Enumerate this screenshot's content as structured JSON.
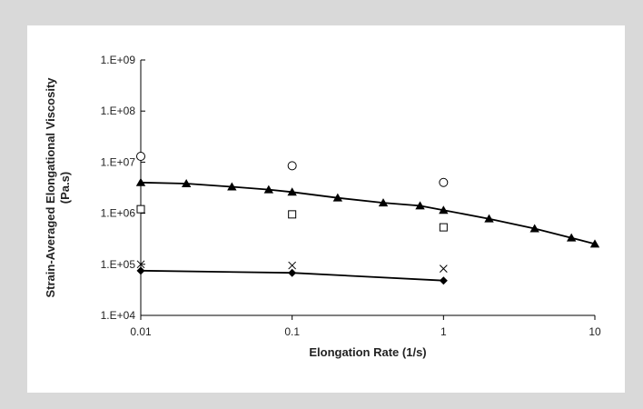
{
  "chart_data": {
    "type": "scatter",
    "xscale": "log",
    "yscale": "log",
    "xlim": [
      0.01,
      10
    ],
    "ylim": [
      10000,
      1000000000
    ],
    "xlabel": "Elongation Rate (1/s)",
    "ylabel_line1": "Strain-Averaged Elongational Viscosity",
    "ylabel_line2": "(Pa.s)",
    "x_ticks": [
      0.01,
      0.1,
      1,
      10
    ],
    "x_tick_labels": [
      "0.01",
      "0.1",
      "1",
      "10"
    ],
    "y_ticks": [
      10000,
      100000,
      1000000,
      10000000,
      100000000,
      1000000000
    ],
    "y_tick_labels": [
      "1.E+04",
      "1.E+05",
      "1.E+06",
      "1.E+07",
      "1.E+08",
      "1.E+09"
    ],
    "grid": false,
    "legend": "none",
    "series": [
      {
        "marker": "triangle",
        "line": true,
        "x": [
          0.01,
          0.02,
          0.04,
          0.07,
          0.1,
          0.2,
          0.4,
          0.7,
          1,
          2,
          4,
          7,
          10
        ],
        "y": [
          4000000,
          3800000,
          3300000,
          2900000,
          2600000,
          2000000,
          1600000,
          1400000,
          1150000,
          780000,
          500000,
          330000,
          250000
        ]
      },
      {
        "marker": "diamond",
        "line": true,
        "x": [
          0.01,
          0.1,
          1
        ],
        "y": [
          75000,
          68000,
          48000
        ]
      },
      {
        "marker": "circle",
        "line": false,
        "x": [
          0.01,
          0.1,
          1
        ],
        "y": [
          13000000,
          8500000,
          4000000
        ]
      },
      {
        "marker": "square",
        "line": false,
        "x": [
          0.01,
          0.1,
          1
        ],
        "y": [
          1200000,
          950000,
          530000
        ]
      },
      {
        "marker": "cross",
        "line": false,
        "x": [
          0.01,
          0.1,
          1
        ],
        "y": [
          100000,
          95000,
          82000
        ]
      }
    ]
  }
}
